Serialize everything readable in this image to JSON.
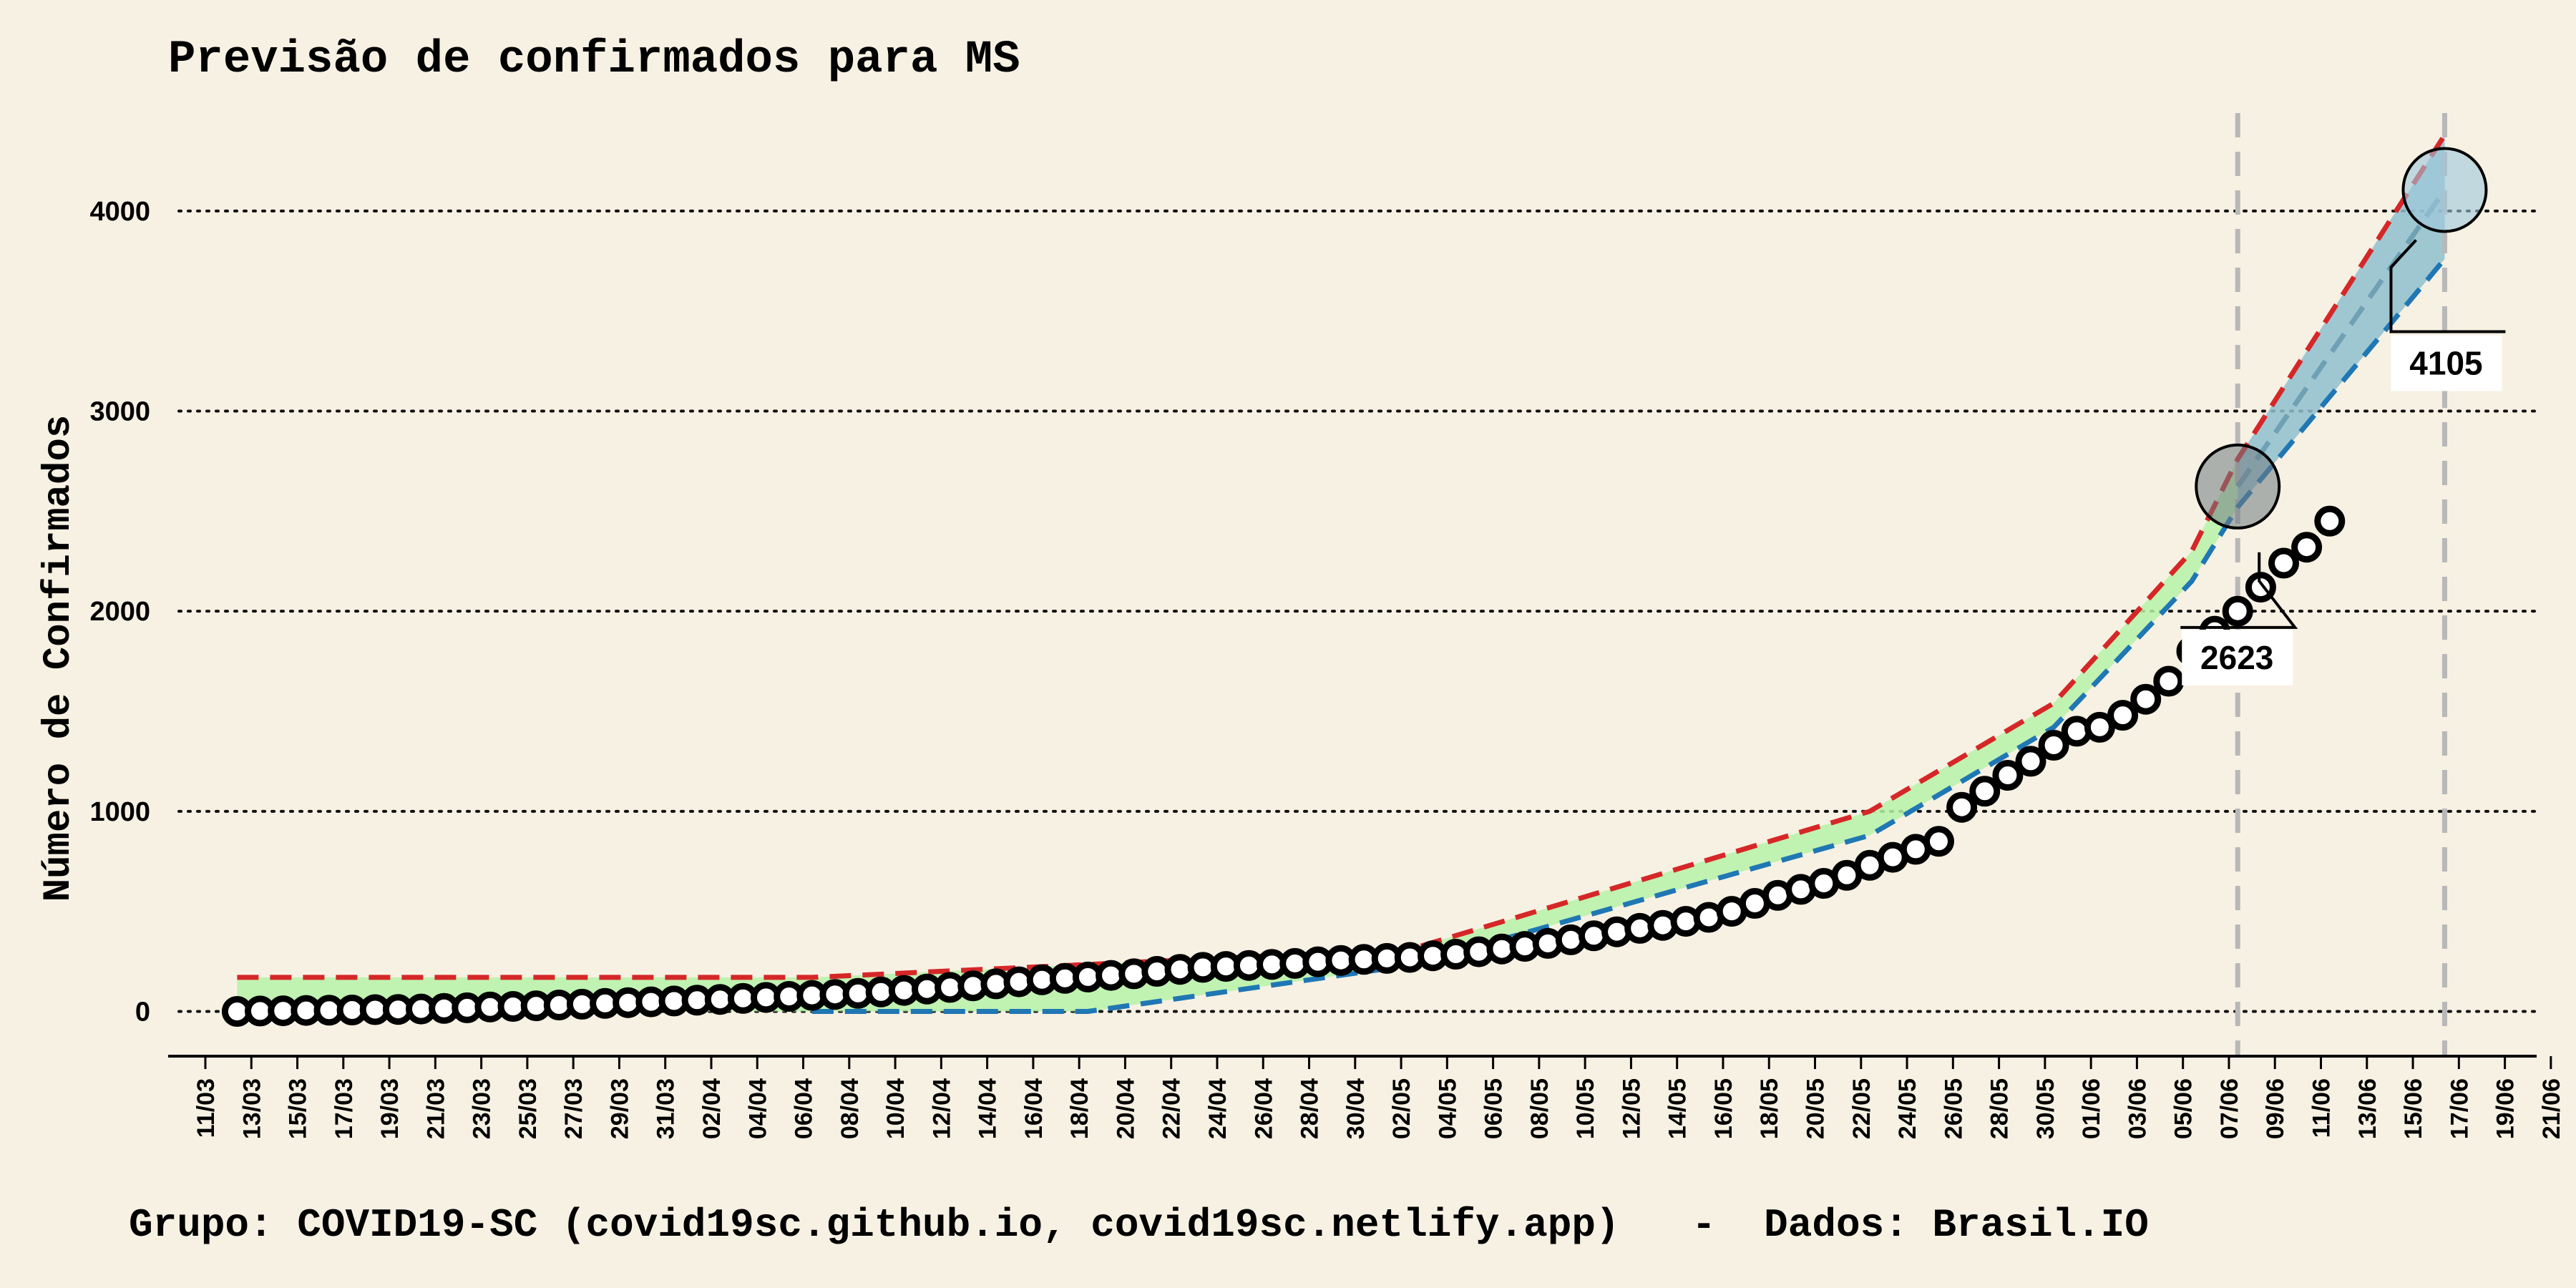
{
  "chart_data": {
    "type": "line",
    "title": "Previsão de confirmados para MS",
    "ylabel": "Número de Confirmados",
    "xlabel": "",
    "footer": "Grupo: COVID19-SC (covid19sc.github.io, covid19sc.netlify.app)   -  Dados: Brasil.IO",
    "ylim": [
      -220,
      4500
    ],
    "yticks": [
      0,
      1000,
      2000,
      3000,
      4000
    ],
    "grid": "horizontal-dotted",
    "x_start": "2020-03-11",
    "x_end": "2020-06-22",
    "xticks": [
      "11/03",
      "13/03",
      "15/03",
      "17/03",
      "19/03",
      "21/03",
      "23/03",
      "25/03",
      "27/03",
      "29/03",
      "31/03",
      "02/04",
      "04/04",
      "06/04",
      "08/04",
      "10/04",
      "12/04",
      "14/04",
      "16/04",
      "18/04",
      "20/04",
      "22/04",
      "24/04",
      "26/04",
      "28/04",
      "30/04",
      "02/05",
      "04/05",
      "06/05",
      "08/05",
      "10/05",
      "12/05",
      "14/05",
      "16/05",
      "18/05",
      "20/05",
      "22/05",
      "24/05",
      "26/05",
      "28/05",
      "30/05",
      "01/06",
      "03/06",
      "05/06",
      "07/06",
      "09/06",
      "11/06",
      "13/06",
      "15/06",
      "17/06",
      "19/06",
      "21/06"
    ],
    "observed": {
      "start_date": "2020-03-14",
      "values": [
        0,
        2,
        3,
        5,
        6,
        7,
        9,
        10,
        12,
        15,
        18,
        22,
        25,
        28,
        32,
        36,
        40,
        44,
        48,
        52,
        56,
        60,
        65,
        70,
        75,
        80,
        85,
        90,
        97,
        105,
        112,
        120,
        128,
        138,
        148,
        158,
        165,
        172,
        180,
        188,
        200,
        210,
        220,
        225,
        230,
        235,
        240,
        248,
        255,
        260,
        265,
        270,
        278,
        286,
        298,
        312,
        325,
        340,
        358,
        378,
        398,
        415,
        430,
        450,
        470,
        500,
        540,
        580,
        610,
        640,
        680,
        730,
        770,
        810,
        850,
        1020,
        1100,
        1180,
        1250,
        1330,
        1400,
        1420,
        1480,
        1560,
        1650,
        1800,
        1900,
        2000,
        2120,
        2240,
        2320,
        2450
      ]
    },
    "upper_fit": [
      {
        "x": "2020-03-14",
        "y": 170
      },
      {
        "x": "2020-04-08",
        "y": 170
      },
      {
        "x": "2020-05-04",
        "y": 310
      },
      {
        "x": "2020-05-24",
        "y": 1000
      },
      {
        "x": "2020-06-01",
        "y": 1540
      },
      {
        "x": "2020-06-07",
        "y": 2300
      },
      {
        "x": "2020-06-09",
        "y": 2760
      },
      {
        "x": "2020-06-18",
        "y": 4380
      }
    ],
    "lower_fit": [
      {
        "x": "2020-04-08",
        "y": 0
      },
      {
        "x": "2020-04-20",
        "y": 0
      },
      {
        "x": "2020-05-04",
        "y": 230
      },
      {
        "x": "2020-05-24",
        "y": 880
      },
      {
        "x": "2020-06-01",
        "y": 1420
      },
      {
        "x": "2020-06-07",
        "y": 2150
      },
      {
        "x": "2020-06-09",
        "y": 2520
      },
      {
        "x": "2020-06-18",
        "y": 3760
      }
    ],
    "mid_fit": [
      {
        "x": "2020-06-09",
        "y": 2623
      },
      {
        "x": "2020-06-18",
        "y": 4105
      }
    ],
    "forecasts": [
      {
        "date": "2020-06-09",
        "value": 2623,
        "label": "2623"
      },
      {
        "date": "2020-06-18",
        "value": 4105,
        "label": "4105"
      }
    ],
    "colors": {
      "background": "#f7f1e3",
      "upper": "#d62728",
      "lower": "#1f77b4",
      "band_past": "#b6f2a8",
      "band_future": "#8fbfcf",
      "vline": "#b8b8b8",
      "marker_fill": "#ffffff",
      "marker_edge": "#000000"
    }
  }
}
